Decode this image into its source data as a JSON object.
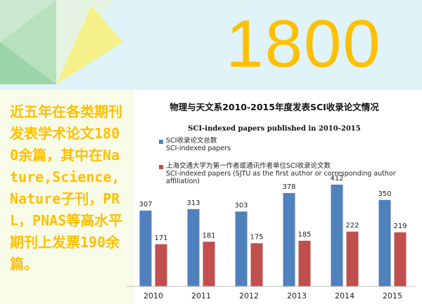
{
  "big_number": "1800",
  "left_text": "近五年在各类期刊发表学术论文1800余篇，其中在Nature,Science,Nature子刊，PRL，PNAS等高水平期刊上发票190余篇。",
  "colors": {
    "background": "#dff3f8",
    "accent": "#ffc000",
    "triangle_green_dark": "#9bd4a6",
    "triangle_green_light": "#cbe9cf",
    "triangle_yellow": "#f5f08a",
    "series_total": "#4f81bd",
    "series_sjtu": "#c0504d"
  },
  "chart_data": {
    "type": "bar",
    "title": "物理与天文系2010-2015年度发表SCI收录论文情况",
    "subtitle": "SCI-indexed papers published in 2010-2015",
    "categories": [
      "2010",
      "2011",
      "2012",
      "2013",
      "2014",
      "2015"
    ],
    "series": [
      {
        "name": "SCI收录论文总数",
        "name_en": "SCI-indexed papers",
        "color": "#4f81bd",
        "values": [
          307,
          313,
          303,
          378,
          412,
          350
        ]
      },
      {
        "name": "上海交通大学为第一作者或通讯作者单位SCI收录论文数",
        "name_en": "SCI-indexed papers (SJTU as the first author or corresponding author affiliation)",
        "color": "#c0504d",
        "values": [
          171,
          181,
          175,
          185,
          222,
          219
        ]
      }
    ],
    "ylim": [
      0,
      430
    ],
    "grid": false,
    "legend": "top-left"
  }
}
